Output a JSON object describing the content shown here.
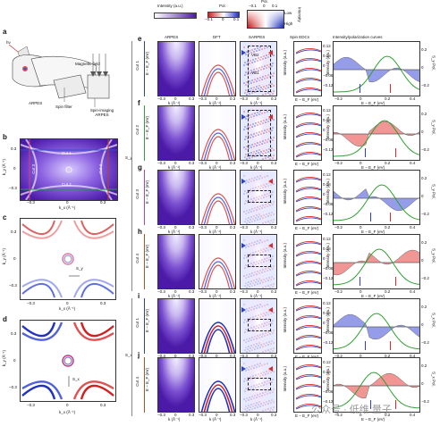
{
  "colorbars": {
    "intensity_label": "Intensity (a.u.)",
    "pol_label": "Pol.",
    "pol_ticks": [
      "−0.1",
      "0",
      "0.1"
    ],
    "pol2_label": "Pol.",
    "pol2_ticks": [
      "−0.1",
      "0",
      "0.1"
    ],
    "low": "Low",
    "high": "High",
    "intensity_v": "Intensity"
  },
  "panel_a": {
    "letter": "a",
    "hv": "hν",
    "arpes": "ARPES",
    "spin_filter": "Spin filter",
    "magnetic_field": "Magnetic field",
    "spin_imaging": "Spin-imaging ARPES"
  },
  "panel_b": {
    "letter": "b",
    "cut1": "Cut 1",
    "cut2": "Cut 2",
    "cut3": "Cut 3",
    "cut4": "Cut 4",
    "y_ticks": [
      "0.3",
      "0",
      "−0.3"
    ],
    "x_ticks": [
      "−0.3",
      "0",
      "0.3"
    ],
    "ylabel": "k_y (Å⁻¹)",
    "xlabel": "k_x (Å⁻¹)"
  },
  "panel_c": {
    "letter": "c",
    "sy": "S_y",
    "y_ticks": [
      "0.3",
      "0",
      "−0.3"
    ],
    "x_ticks": [
      "−0.3",
      "0",
      "0.3"
    ],
    "ylabel": "k_y (Å⁻¹)",
    "xlabel": "k_x (Å⁻¹)"
  },
  "panel_d": {
    "letter": "d",
    "sx": "S_x",
    "y_ticks": [
      "0.3",
      "0",
      "−0.3"
    ],
    "x_ticks": [
      "−0.3",
      "0",
      "0.3"
    ],
    "ylabel": "k_y (Å⁻¹)",
    "xlabel": "k_x (Å⁻¹)"
  },
  "columns": {
    "arpes": "ARPES",
    "dft": "DFT",
    "sarpes": "SARPES",
    "spin_edcs": "Spin EDCs",
    "curves": "Intensity/polarization curves"
  },
  "group_labels": {
    "sy": "S_y",
    "sx": "S_x"
  },
  "rows": [
    {
      "letter": "e",
      "cut": "Cut 1"
    },
    {
      "letter": "f",
      "cut": "Cut 2"
    },
    {
      "letter": "g",
      "cut": "Cut 3"
    },
    {
      "letter": "h",
      "cut": "Cut 4"
    },
    {
      "letter": "i",
      "cut": "Cut 1"
    },
    {
      "letter": "j",
      "cut": "Cut 4"
    }
  ],
  "axes": {
    "e_ef": "E − E_F (eV)",
    "k": "k (Å⁻¹)",
    "intensity": "Intensity (a.u.)",
    "s_pol": "S_y Pol.",
    "sx_pol": "S_x Pol.",
    "e_ticks": [
      "0",
      "−0.1",
      "−0.2"
    ],
    "k_ticks": [
      "−0.3",
      "0",
      "0.3"
    ],
    "edc_ticks": [
      "0.12",
      "0.06",
      "0",
      "−0.06",
      "−0.12"
    ],
    "curve_x_ticks": [
      "−0.2",
      "0",
      "0.2",
      "0.4"
    ],
    "pol_ticks": [
      "0.2",
      "0",
      "−0.2"
    ],
    "vb_labels": [
      "VB2",
      "VB1"
    ]
  },
  "watermark": "公众号 · 低维 量子"
}
